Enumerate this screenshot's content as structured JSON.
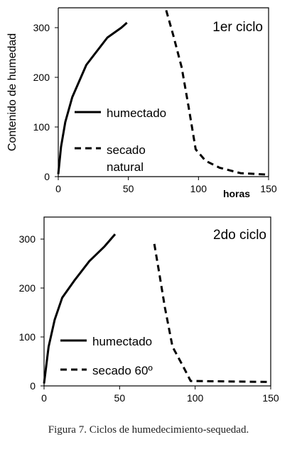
{
  "figure_caption": "Figura 7. Ciclos de humedecimiento-sequedad.",
  "colors": {
    "line": "#000000",
    "frame": "#000000",
    "background": "#ffffff"
  },
  "chart_data": [
    {
      "type": "line",
      "title": "1er ciclo",
      "ylabel": "Contenido de humedad",
      "xlabel": "horas",
      "xlim": [
        0,
        150
      ],
      "ylim": [
        0,
        340
      ],
      "xticks": [
        0,
        50,
        100,
        150
      ],
      "yticks": [
        0,
        100,
        200,
        300
      ],
      "grid": false,
      "legend_position": "left-lower",
      "series": [
        {
          "name": "humectado",
          "style": "solid",
          "x": [
            0,
            2,
            5,
            10,
            20,
            35,
            45,
            49
          ],
          "y": [
            5,
            60,
            110,
            160,
            225,
            280,
            300,
            310
          ]
        },
        {
          "name": "secado natural",
          "style": "dashed",
          "x": [
            77,
            82,
            88,
            93,
            98,
            105,
            115,
            130,
            150
          ],
          "y": [
            335,
            285,
            220,
            140,
            55,
            32,
            18,
            7,
            4
          ]
        }
      ]
    },
    {
      "type": "line",
      "title": "2do ciclo",
      "ylabel": "",
      "xlabel": "",
      "xlim": [
        0,
        150
      ],
      "ylim": [
        0,
        345
      ],
      "xticks": [
        0,
        50,
        100,
        150
      ],
      "yticks": [
        0,
        100,
        200,
        300
      ],
      "grid": false,
      "legend_position": "left-lower",
      "series": [
        {
          "name": "humectado",
          "style": "solid",
          "x": [
            0,
            3,
            7,
            12,
            20,
            30,
            40,
            47
          ],
          "y": [
            5,
            80,
            135,
            180,
            215,
            255,
            285,
            310
          ]
        },
        {
          "name": "secado 60º",
          "style": "dashed",
          "x": [
            73,
            76,
            80,
            85,
            92,
            97,
            100,
            150
          ],
          "y": [
            290,
            235,
            160,
            80,
            40,
            10,
            10,
            8
          ]
        }
      ]
    }
  ]
}
